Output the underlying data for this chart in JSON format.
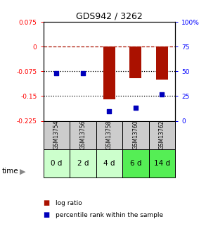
{
  "title": "GDS942 / 3262",
  "samples": [
    "GSM13754",
    "GSM13756",
    "GSM13758",
    "GSM13760",
    "GSM13762"
  ],
  "time_labels": [
    "0 d",
    "2 d",
    "4 d",
    "6 d",
    "14 d"
  ],
  "log_ratio": [
    0.0,
    0.0,
    -0.16,
    -0.095,
    -0.1
  ],
  "percentile_rank": [
    48,
    48,
    10,
    13,
    27
  ],
  "ylim_left": [
    -0.225,
    0.075
  ],
  "ylim_right": [
    0,
    100
  ],
  "yticks_left": [
    0.075,
    0,
    -0.075,
    -0.15,
    -0.225
  ],
  "yticks_right": [
    100,
    75,
    50,
    25,
    0
  ],
  "left_tick_labels": [
    "0.075",
    "0",
    "-0.075",
    "-0.15",
    "-0.225"
  ],
  "right_tick_labels": [
    "100%",
    "75",
    "50",
    "25",
    "0"
  ],
  "bar_color": "#aa1100",
  "dot_color": "#0000bb",
  "dotted_lines": [
    -0.075,
    -0.15
  ],
  "cell_bg_gsm": "#cccccc",
  "cell_bg_time_colors": [
    "#ccffcc",
    "#ccffcc",
    "#ccffcc",
    "#55ee55",
    "#55ee55"
  ],
  "legend_bar_label": "log ratio",
  "legend_dot_label": "percentile rank within the sample",
  "bar_width": 0.45
}
